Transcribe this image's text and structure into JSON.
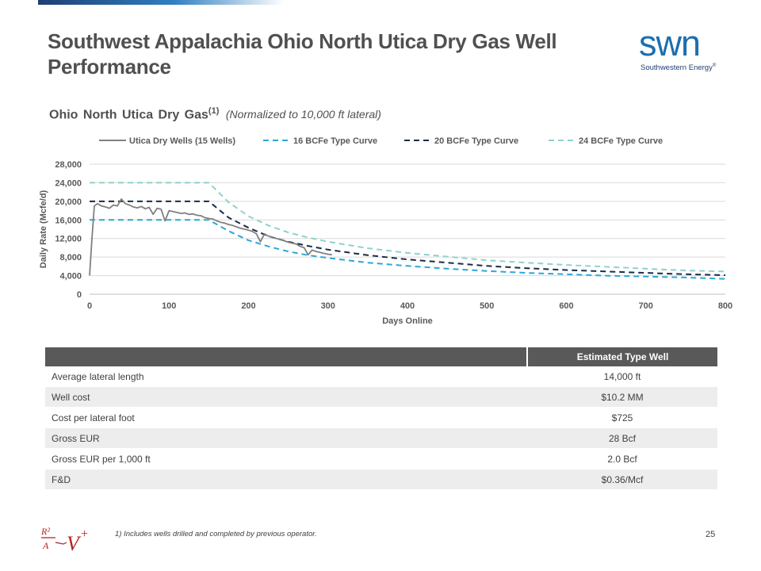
{
  "header": {
    "title": "Southwest Appalachia Ohio North Utica Dry Gas Well Performance",
    "logo_word": "swn",
    "logo_sub": "Southwestern Energy",
    "logo_reg": "®"
  },
  "subtitle": {
    "main": "Ohio North Utica Dry Gas",
    "sup": "(1)",
    "note": "(Normalized to 10,000 ft lateral)"
  },
  "colors": {
    "actual": "#808080",
    "bcf16": "#2aa8d8",
    "bcf20": "#1a2c48",
    "bcf24": "#8fd2cc",
    "grid": "#d9d9d9",
    "table_header": "#595959"
  },
  "chart_data": {
    "type": "line",
    "xlabel": "Days Online",
    "ylabel": "Daily Rate (Mcfe/d)",
    "xlim": [
      0,
      800
    ],
    "ylim": [
      0,
      28000
    ],
    "xticks": [
      "0",
      "100",
      "200",
      "300",
      "400",
      "500",
      "600",
      "700",
      "800"
    ],
    "yticks": [
      "0",
      "4,000",
      "8,000",
      "12,000",
      "16,000",
      "20,000",
      "24,000",
      "28,000"
    ],
    "grid": "horizontal",
    "legend_position": "top",
    "series": [
      {
        "name": "Utica Dry Wells (15 Wells)",
        "style": "solid",
        "x": [
          0,
          3,
          6,
          10,
          15,
          20,
          25,
          30,
          35,
          40,
          45,
          50,
          55,
          60,
          65,
          70,
          75,
          80,
          85,
          90,
          95,
          100,
          105,
          110,
          115,
          120,
          125,
          130,
          135,
          140,
          145,
          150,
          155,
          160,
          165,
          170,
          175,
          180,
          185,
          190,
          195,
          200,
          205,
          210,
          215,
          220,
          225,
          230,
          235,
          240,
          245,
          250,
          255,
          260,
          265,
          270,
          275,
          280,
          285,
          290,
          295,
          300,
          305
        ],
        "y": [
          4000,
          12000,
          19000,
          19500,
          19000,
          18800,
          18500,
          19200,
          19000,
          20500,
          19500,
          19200,
          18800,
          18600,
          18900,
          18400,
          18700,
          17200,
          18500,
          18300,
          15800,
          18000,
          17800,
          17600,
          17400,
          17500,
          17200,
          17300,
          17000,
          16900,
          16500,
          16300,
          16200,
          15800,
          15500,
          15300,
          15000,
          14800,
          14500,
          14200,
          14000,
          13800,
          13500,
          13000,
          11300,
          13000,
          12500,
          12300,
          12000,
          11800,
          11500,
          11200,
          11000,
          10800,
          10300,
          10000,
          8500,
          9500,
          9200,
          9000,
          8800,
          8600,
          8500
        ]
      },
      {
        "name": "16 BCFe Type Curve",
        "style": "dashed",
        "x": [
          0,
          150,
          175,
          200,
          225,
          250,
          275,
          300,
          350,
          400,
          450,
          500,
          550,
          600,
          650,
          700,
          750,
          800
        ],
        "y": [
          16000,
          16000,
          13600,
          11600,
          10300,
          9200,
          8400,
          7800,
          6800,
          6100,
          5500,
          5000,
          4600,
          4300,
          4000,
          3800,
          3600,
          3300
        ]
      },
      {
        "name": "20 BCFe Type Curve",
        "style": "dashed",
        "x": [
          0,
          150,
          175,
          200,
          225,
          250,
          275,
          300,
          350,
          400,
          450,
          500,
          550,
          600,
          650,
          700,
          750,
          800
        ],
        "y": [
          20000,
          20000,
          16500,
          14300,
          12500,
          11300,
          10400,
          9600,
          8400,
          7500,
          6800,
          6100,
          5600,
          5200,
          4900,
          4600,
          4300,
          4100
        ]
      },
      {
        "name": "24 BCFe Type Curve",
        "style": "dashed",
        "x": [
          0,
          150,
          175,
          200,
          225,
          250,
          275,
          300,
          350,
          400,
          450,
          500,
          550,
          600,
          650,
          700,
          750,
          800
        ],
        "y": [
          24000,
          24000,
          19800,
          16800,
          14800,
          13300,
          12200,
          11300,
          9900,
          8900,
          8100,
          7300,
          6800,
          6300,
          5900,
          5500,
          5100,
          4900
        ]
      }
    ]
  },
  "table": {
    "header": "Estimated Type Well",
    "rows": [
      {
        "label": "Average  lateral length",
        "value": "14,000 ft"
      },
      {
        "label": "Well cost",
        "value": "$10.2 MM"
      },
      {
        "label": "Cost per lateral foot",
        "value": "$725"
      },
      {
        "label": "Gross EUR",
        "value": "28 Bcf"
      },
      {
        "label": "Gross EUR per 1,000 ft",
        "value": "2.0 Bcf"
      },
      {
        "label": "F&D",
        "value": "$0.36/Mcf"
      }
    ]
  },
  "footer": {
    "footnote": "1) Includes wells drilled and completed by previous operator.",
    "page": "25",
    "logo_text_top": "R²",
    "logo_text_mid": "A",
    "logo_text_v": "V",
    "logo_text_plus": "+"
  }
}
